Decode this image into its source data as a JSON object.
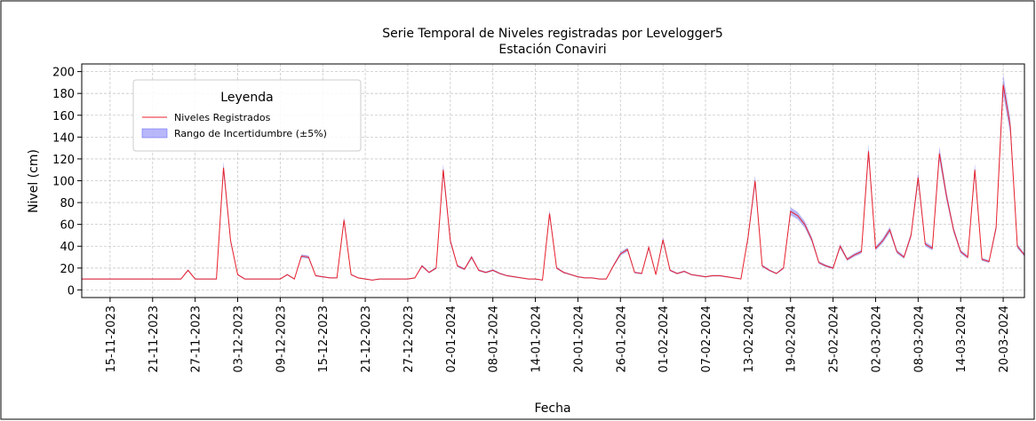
{
  "chart_data": {
    "type": "line",
    "title": "Serie Temporal de Niveles registradas por Levelogger5",
    "subtitle": "Estación Conaviri",
    "x_label": "Fecha",
    "y_label": "Nivel (cm)",
    "legend_title": "Leyenda",
    "legend": "upper left",
    "grid": true,
    "x": [
      "2023-11-11",
      "2023-11-12",
      "2023-11-13",
      "2023-11-14",
      "2023-11-15",
      "2023-11-16",
      "2023-11-17",
      "2023-11-18",
      "2023-11-19",
      "2023-11-20",
      "2023-11-21",
      "2023-11-22",
      "2023-11-23",
      "2023-11-24",
      "2023-11-25",
      "2023-11-26",
      "2023-11-27",
      "2023-11-28",
      "2023-11-29",
      "2023-11-30",
      "2023-12-01",
      "2023-12-02",
      "2023-12-03",
      "2023-12-04",
      "2023-12-05",
      "2023-12-06",
      "2023-12-07",
      "2023-12-08",
      "2023-12-09",
      "2023-12-10",
      "2023-12-11",
      "2023-12-12",
      "2023-12-13",
      "2023-12-14",
      "2023-12-15",
      "2023-12-16",
      "2023-12-17",
      "2023-12-18",
      "2023-12-19",
      "2023-12-20",
      "2023-12-21",
      "2023-12-22",
      "2023-12-23",
      "2023-12-24",
      "2023-12-25",
      "2023-12-26",
      "2023-12-27",
      "2023-12-28",
      "2023-12-29",
      "2023-12-30",
      "2023-12-31",
      "2024-01-01",
      "2024-01-02",
      "2024-01-03",
      "2024-01-04",
      "2024-01-05",
      "2024-01-06",
      "2024-01-07",
      "2024-01-08",
      "2024-01-09",
      "2024-01-10",
      "2024-01-11",
      "2024-01-12",
      "2024-01-13",
      "2024-01-14",
      "2024-01-15",
      "2024-01-16",
      "2024-01-17",
      "2024-01-18",
      "2024-01-19",
      "2024-01-20",
      "2024-01-21",
      "2024-01-22",
      "2024-01-23",
      "2024-01-24",
      "2024-01-25",
      "2024-01-26",
      "2024-01-27",
      "2024-01-28",
      "2024-01-29",
      "2024-01-30",
      "2024-01-31",
      "2024-02-01",
      "2024-02-02",
      "2024-02-03",
      "2024-02-04",
      "2024-02-05",
      "2024-02-06",
      "2024-02-07",
      "2024-02-08",
      "2024-02-09",
      "2024-02-10",
      "2024-02-11",
      "2024-02-12",
      "2024-02-13",
      "2024-02-14",
      "2024-02-15",
      "2024-02-16",
      "2024-02-17",
      "2024-02-18",
      "2024-02-19",
      "2024-02-20",
      "2024-02-21",
      "2024-02-22",
      "2024-02-23",
      "2024-02-24",
      "2024-02-25",
      "2024-02-26",
      "2024-02-27",
      "2024-02-28",
      "2024-02-29",
      "2024-03-01",
      "2024-03-02",
      "2024-03-03",
      "2024-03-04",
      "2024-03-05",
      "2024-03-06",
      "2024-03-07",
      "2024-03-08",
      "2024-03-09",
      "2024-03-10",
      "2024-03-11",
      "2024-03-12",
      "2024-03-13",
      "2024-03-14",
      "2024-03-15",
      "2024-03-16",
      "2024-03-17",
      "2024-03-18",
      "2024-03-19",
      "2024-03-20",
      "2024-03-21",
      "2024-03-22",
      "2024-03-23"
    ],
    "series": [
      {
        "name": "Niveles Registrados",
        "color": "#e8212b",
        "values": [
          10,
          10,
          10,
          10,
          10,
          10,
          10,
          10,
          10,
          10,
          10,
          10,
          10,
          10,
          10,
          18,
          10,
          10,
          10,
          10,
          112,
          45,
          14,
          10,
          10,
          10,
          10,
          10,
          10,
          14,
          10,
          31,
          30,
          13,
          12,
          11,
          11,
          64,
          14,
          11,
          10,
          9,
          10,
          10,
          10,
          10,
          10,
          11,
          22,
          16,
          20,
          110,
          45,
          22,
          19,
          30,
          18,
          16,
          18,
          15,
          13,
          12,
          11,
          10,
          10,
          9,
          70,
          20,
          16,
          14,
          12,
          11,
          11,
          10,
          10,
          22,
          33,
          37,
          16,
          15,
          39,
          14,
          46,
          18,
          15,
          17,
          14,
          13,
          12,
          13,
          13,
          12,
          11,
          10,
          48,
          100,
          22,
          18,
          15,
          20,
          72,
          68,
          60,
          46,
          25,
          22,
          20,
          40,
          28,
          32,
          35,
          127,
          38,
          45,
          55,
          35,
          30,
          50,
          103,
          42,
          38,
          125,
          86,
          55,
          35,
          30,
          110,
          28,
          26,
          57,
          188,
          150,
          40,
          32
        ]
      },
      {
        "name": "Rango de Incertidumbre (±5%)",
        "color": "#6f6ff5",
        "uncertainty": 5
      }
    ],
    "xlim": [
      "2023-11-11",
      "2024-03-23"
    ],
    "xticks": [
      {
        "value": "2023-11-15",
        "label": "15-11-2023"
      },
      {
        "value": "2023-11-21",
        "label": "21-11-2023"
      },
      {
        "value": "2023-11-27",
        "label": "27-11-2023"
      },
      {
        "value": "2023-12-03",
        "label": "03-12-2023"
      },
      {
        "value": "2023-12-09",
        "label": "09-12-2023"
      },
      {
        "value": "2023-12-15",
        "label": "15-12-2023"
      },
      {
        "value": "2023-12-21",
        "label": "21-12-2023"
      },
      {
        "value": "2023-12-27",
        "label": "27-12-2023"
      },
      {
        "value": "2024-01-02",
        "label": "02-01-2024"
      },
      {
        "value": "2024-01-08",
        "label": "08-01-2024"
      },
      {
        "value": "2024-01-14",
        "label": "14-01-2024"
      },
      {
        "value": "2024-01-20",
        "label": "20-01-2024"
      },
      {
        "value": "2024-01-26",
        "label": "26-01-2024"
      },
      {
        "value": "2024-02-01",
        "label": "01-02-2024"
      },
      {
        "value": "2024-02-07",
        "label": "07-02-2024"
      },
      {
        "value": "2024-02-13",
        "label": "13-02-2024"
      },
      {
        "value": "2024-02-19",
        "label": "19-02-2024"
      },
      {
        "value": "2024-02-25",
        "label": "25-02-2024"
      },
      {
        "value": "2024-03-02",
        "label": "02-03-2024"
      },
      {
        "value": "2024-03-08",
        "label": "08-03-2024"
      },
      {
        "value": "2024-03-14",
        "label": "14-03-2024"
      },
      {
        "value": "2024-03-20",
        "label": "20-03-2024"
      }
    ],
    "ylim": [
      -7,
      207
    ],
    "yticks": [
      0,
      20,
      40,
      60,
      80,
      100,
      120,
      140,
      160,
      180,
      200
    ]
  }
}
